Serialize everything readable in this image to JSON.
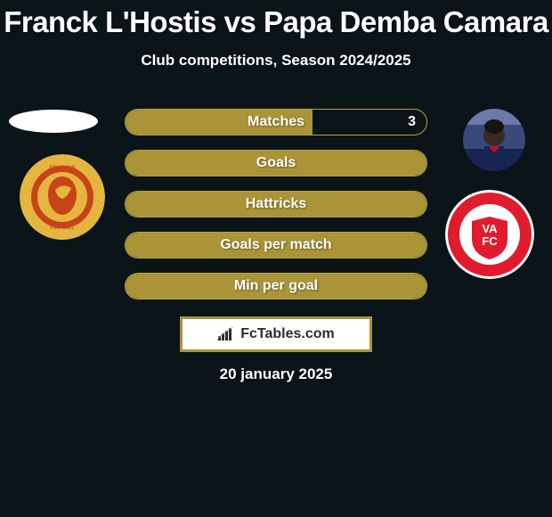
{
  "title": "Franck L'Hostis vs Papa Demba Camara",
  "subtitle": "Club competitions, Season 2024/2025",
  "stats": [
    {
      "label": "Matches",
      "right_value": "3",
      "fill_percent": 62
    },
    {
      "label": "Goals",
      "right_value": "",
      "fill_percent": 100
    },
    {
      "label": "Hattricks",
      "right_value": "",
      "fill_percent": 100
    },
    {
      "label": "Goals per match",
      "right_value": "",
      "fill_percent": 100
    },
    {
      "label": "Min per goal",
      "right_value": "",
      "fill_percent": 100
    }
  ],
  "watermark": "FcTables.com",
  "date": "20 january 2025",
  "colors": {
    "background": "#0b1419",
    "accent": "#aa9437",
    "accent_border": "#b9a23e",
    "text": "#ffffff",
    "club_left_bg": "#e5b63f",
    "club_left_inner": "#c74318",
    "club_right_outer": "#e01b2d",
    "club_right_inner": "#ffffff",
    "avatar_bg": "#2a3a6a",
    "avatar_skin": "#3b2a22",
    "avatar_jersey": "#182454"
  }
}
